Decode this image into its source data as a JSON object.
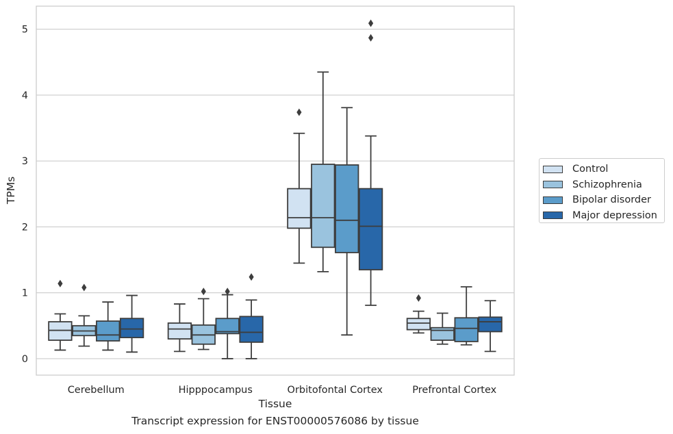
{
  "chart_data": {
    "type": "box",
    "title": "",
    "caption": "Transcript expression for ENST00000576086 by tissue",
    "xlabel": "Tissue",
    "ylabel": "TPMs",
    "ylim": [
      -0.25,
      5.35
    ],
    "yticks": [
      "0",
      "1",
      "2",
      "3",
      "4",
      "5"
    ],
    "grid": "horizontal",
    "legend_position": "right",
    "categories": [
      "Cerebellum",
      "Hipppocampus",
      "Orbitofontal Cortex",
      "Prefrontal Cortex"
    ],
    "series": [
      {
        "name": "Control",
        "color": "#d1e2f2",
        "boxes": [
          {
            "whislo": 0.13,
            "q1": 0.28,
            "med": 0.43,
            "q3": 0.56,
            "whishi": 0.68,
            "fliers": [
              1.14
            ]
          },
          {
            "whislo": 0.11,
            "q1": 0.3,
            "med": 0.45,
            "q3": 0.54,
            "whishi": 0.83,
            "fliers": []
          },
          {
            "whislo": 1.45,
            "q1": 1.98,
            "med": 2.14,
            "q3": 2.58,
            "whishi": 3.42,
            "fliers": [
              3.74
            ]
          },
          {
            "whislo": 0.39,
            "q1": 0.44,
            "med": 0.54,
            "q3": 0.61,
            "whishi": 0.72,
            "fliers": [
              0.92
            ]
          }
        ]
      },
      {
        "name": "Schizophrenia",
        "color": "#9ac3de",
        "boxes": [
          {
            "whislo": 0.19,
            "q1": 0.35,
            "med": 0.42,
            "q3": 0.5,
            "whishi": 0.65,
            "fliers": [
              1.08
            ]
          },
          {
            "whislo": 0.14,
            "q1": 0.22,
            "med": 0.36,
            "q3": 0.51,
            "whishi": 0.91,
            "fliers": [
              1.02
            ]
          },
          {
            "whislo": 1.32,
            "q1": 1.69,
            "med": 2.14,
            "q3": 2.95,
            "whishi": 4.35,
            "fliers": []
          },
          {
            "whislo": 0.22,
            "q1": 0.28,
            "med": 0.43,
            "q3": 0.47,
            "whishi": 0.69,
            "fliers": []
          }
        ]
      },
      {
        "name": "Bipolar disorder",
        "color": "#5b9cca",
        "boxes": [
          {
            "whislo": 0.13,
            "q1": 0.27,
            "med": 0.36,
            "q3": 0.57,
            "whishi": 0.86,
            "fliers": []
          },
          {
            "whislo": 0.0,
            "q1": 0.38,
            "med": 0.41,
            "q3": 0.61,
            "whishi": 0.97,
            "fliers": [
              1.02
            ]
          },
          {
            "whislo": 0.36,
            "q1": 1.61,
            "med": 2.1,
            "q3": 2.94,
            "whishi": 3.81,
            "fliers": []
          },
          {
            "whislo": 0.21,
            "q1": 0.26,
            "med": 0.46,
            "q3": 0.62,
            "whishi": 1.09,
            "fliers": []
          }
        ]
      },
      {
        "name": "Major depression",
        "color": "#2867a9",
        "boxes": [
          {
            "whislo": 0.1,
            "q1": 0.32,
            "med": 0.45,
            "q3": 0.61,
            "whishi": 0.96,
            "fliers": []
          },
          {
            "whislo": 0.0,
            "q1": 0.25,
            "med": 0.4,
            "q3": 0.64,
            "whishi": 0.89,
            "fliers": [
              1.24
            ]
          },
          {
            "whislo": 0.81,
            "q1": 1.35,
            "med": 2.01,
            "q3": 2.58,
            "whishi": 3.38,
            "fliers": [
              4.87,
              5.09
            ]
          },
          {
            "whislo": 0.11,
            "q1": 0.41,
            "med": 0.56,
            "q3": 0.63,
            "whishi": 0.88,
            "fliers": []
          }
        ]
      }
    ]
  }
}
